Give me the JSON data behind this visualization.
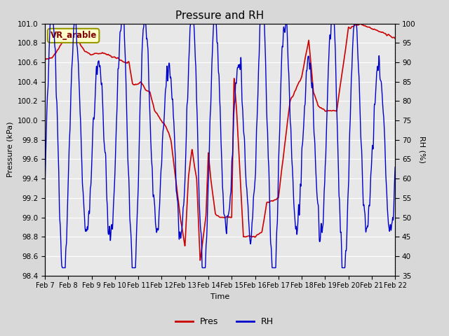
{
  "title": "Pressure and RH",
  "xlabel": "Time",
  "ylabel_left": "Pressure (kPa)",
  "ylabel_right": "RH (%)",
  "annotation": "VR_arable",
  "ylim_left": [
    98.4,
    101.0
  ],
  "ylim_right": [
    35,
    100
  ],
  "yticks_left": [
    98.4,
    98.6,
    98.8,
    99.0,
    99.2,
    99.4,
    99.6,
    99.8,
    100.0,
    100.2,
    100.4,
    100.6,
    100.8,
    101.0
  ],
  "yticks_right": [
    35,
    40,
    45,
    50,
    55,
    60,
    65,
    70,
    75,
    80,
    85,
    90,
    95,
    100
  ],
  "xtick_labels": [
    "Feb 7",
    "Feb 8",
    "Feb 9",
    "Feb 10",
    "Feb 11",
    "Feb 12",
    "Feb 13",
    "Feb 14",
    "Feb 15",
    "Feb 16",
    "Feb 17",
    "Feb 18",
    "Feb 19",
    "Feb 20",
    "Feb 21",
    "Feb 22"
  ],
  "pres_color": "#cc0000",
  "rh_color": "#0000cc",
  "background_color": "#d8d8d8",
  "plot_bg_color": "#e8e8e8",
  "grid_color": "#ffffff",
  "legend_pres": "Pres",
  "legend_rh": "RH",
  "title_fontsize": 11,
  "axis_fontsize": 8,
  "tick_fontsize": 7.5
}
